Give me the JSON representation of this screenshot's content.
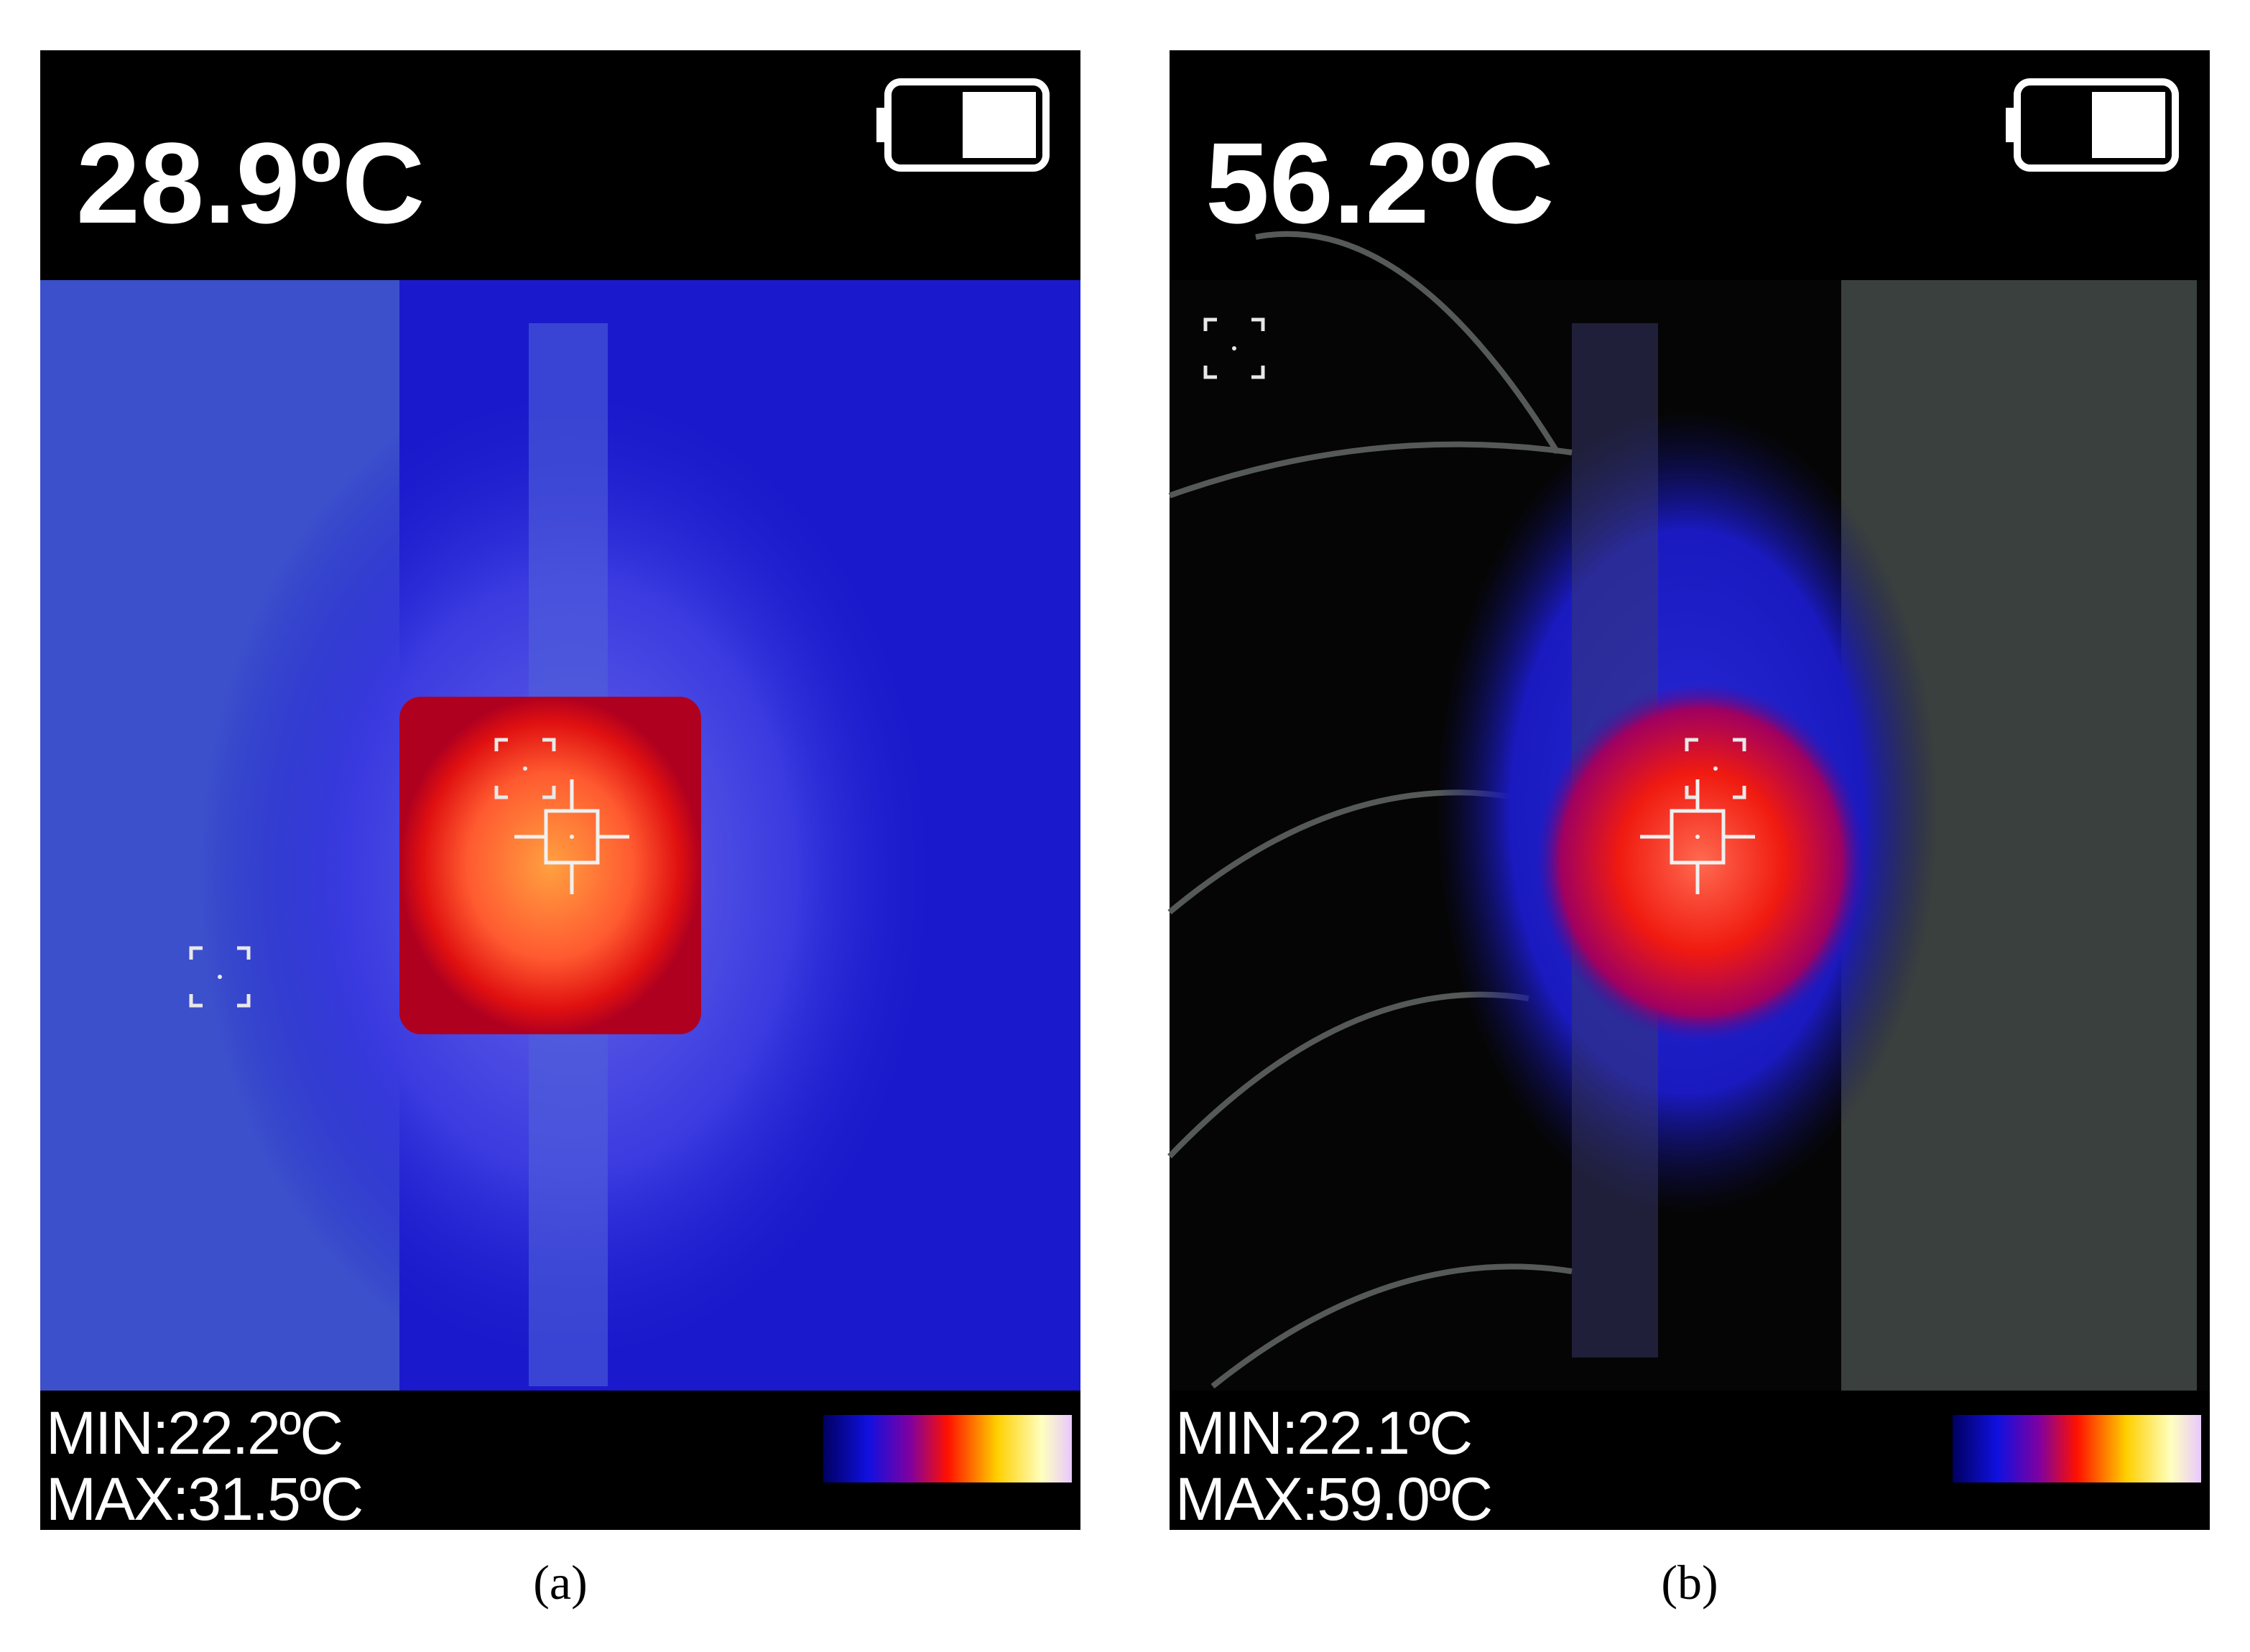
{
  "panels": [
    {
      "temperature": "28.9ºC",
      "min": "MIN:22.2ºC",
      "max": "MAX:31.5ºC",
      "caption": "(a)"
    },
    {
      "temperature": "56.2ºC",
      "min": "MIN:22.1ºC",
      "max": "MAX:59.0ºC",
      "caption": "(b)"
    }
  ]
}
